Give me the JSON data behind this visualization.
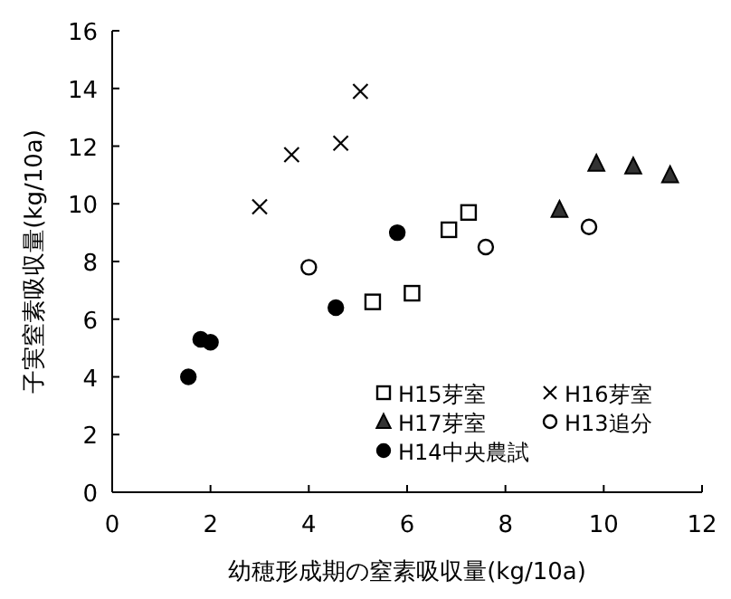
{
  "chart_data": {
    "type": "scatter",
    "xlabel": "幼穂形成期の窒素吸収量(kg/10a)",
    "ylabel": "子実窒素吸収量(kg/10a)",
    "xlim": [
      0,
      12
    ],
    "ylim": [
      0,
      16
    ],
    "xticks": [
      0,
      2,
      4,
      6,
      8,
      10,
      12
    ],
    "yticks": [
      0,
      2,
      4,
      6,
      8,
      10,
      12,
      14,
      16
    ],
    "grid": false,
    "legend": "bottom right",
    "series": [
      {
        "name": "H15芽室",
        "color": "#ffffff",
        "marker": "square",
        "x": [
          5.3,
          6.1,
          6.85,
          7.25
        ],
        "values": [
          6.6,
          6.9,
          9.1,
          9.7
        ]
      },
      {
        "name": "H16芽室",
        "color": "#000000",
        "marker": "cross",
        "x": [
          3.0,
          3.65,
          4.65,
          5.05
        ],
        "values": [
          9.9,
          11.7,
          12.1,
          13.9
        ]
      },
      {
        "name": "H17芽室",
        "color": "#333333",
        "marker": "triangle",
        "x": [
          9.1,
          9.85,
          10.6,
          11.35
        ],
        "values": [
          9.8,
          11.4,
          11.3,
          11.0
        ]
      },
      {
        "name": "H13追分",
        "color": "#ffffff",
        "marker": "circle",
        "x": [
          4.0,
          7.6,
          9.7
        ],
        "values": [
          7.8,
          8.5,
          9.2
        ]
      },
      {
        "name": "H14中央農試",
        "color": "#000000",
        "marker": "circle",
        "x": [
          1.55,
          1.8,
          2.0,
          4.55,
          5.8
        ],
        "values": [
          4.0,
          5.3,
          5.2,
          6.4,
          9.0
        ]
      }
    ]
  }
}
